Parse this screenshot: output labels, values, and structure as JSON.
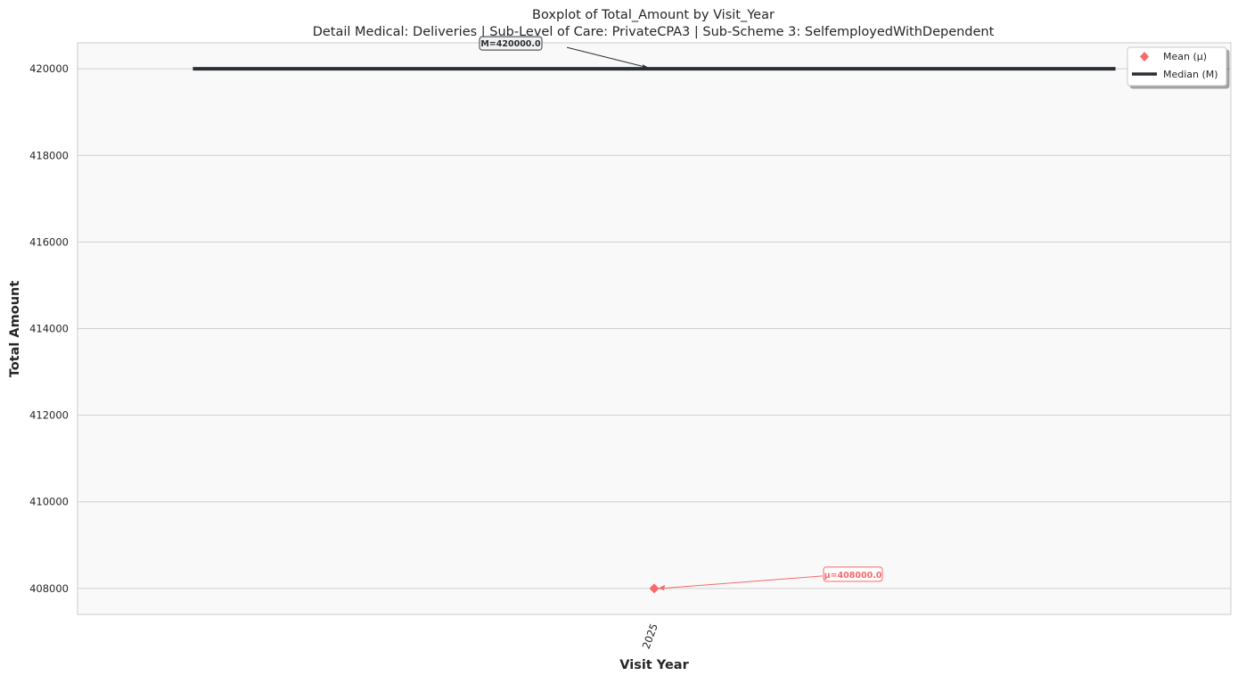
{
  "chart_data": {
    "type": "box",
    "title": "Boxplot of Total_Amount by Visit_Year",
    "subtitle": "Detail Medical: Deliveries | Sub-Level of Care: PrivateCPA3 | Sub-Scheme 3: SelfemployedWithDependent",
    "xlabel": "Visit Year",
    "ylabel": "Total Amount",
    "categories": [
      "2025"
    ],
    "ylim": [
      407400,
      420600
    ],
    "yticks": [
      408000,
      410000,
      412000,
      414000,
      416000,
      418000,
      420000
    ],
    "ytick_labels": [
      "408000",
      "410000",
      "412000",
      "414000",
      "416000",
      "418000",
      "420000"
    ],
    "series": [
      {
        "category": "2025",
        "median": 420000,
        "mean": 408000,
        "median_label": "M=420000.0",
        "mean_label": "μ=408000.0"
      }
    ],
    "legend": {
      "placement": "top-right",
      "entries": [
        {
          "label": "Mean (μ)",
          "marker": "diamond",
          "color": "#f8696b"
        },
        {
          "label": "Median (M)",
          "marker": "line",
          "color": "#2b2f33"
        }
      ]
    },
    "grid": true,
    "colors": {
      "mean": "#f8696b",
      "median": "#2b2f33",
      "plot_bg": "#f9f9f9",
      "grid": "#cfcfcf",
      "text": "#262626"
    }
  }
}
